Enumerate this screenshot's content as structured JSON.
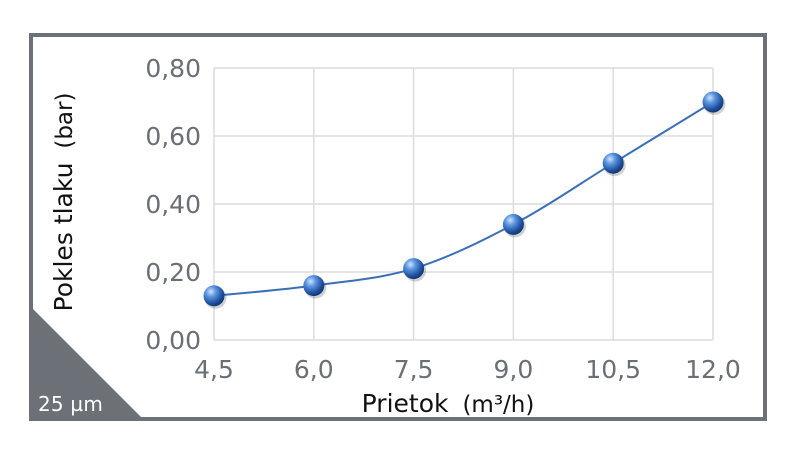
{
  "badge": {
    "label": "25 µm",
    "color": "#6b7177"
  },
  "chart_data": {
    "type": "line",
    "x": [
      4.5,
      6.0,
      7.5,
      9.0,
      10.5,
      12.0
    ],
    "x_tick_labels": [
      "4,5",
      "6,0",
      "7,5",
      "9,0",
      "10,5",
      "12,0"
    ],
    "y_tick_values": [
      0,
      0.2,
      0.4,
      0.6,
      0.8
    ],
    "y_tick_labels": [
      "0,00",
      "0,20",
      "0,40",
      "0,60",
      "0,80"
    ],
    "series": [
      {
        "values": [
          0.13,
          0.16,
          0.21,
          0.34,
          0.52,
          0.7
        ],
        "color": "#3a6fb8"
      }
    ],
    "xlabel_main": "Prietok",
    "xlabel_unit": "(m³/h)",
    "ylabel_main": "Pokles tlaku",
    "ylabel_unit": "(bar)",
    "xlim": [
      4.5,
      12.0
    ],
    "ylim": [
      0,
      0.8
    ],
    "grid": true
  }
}
